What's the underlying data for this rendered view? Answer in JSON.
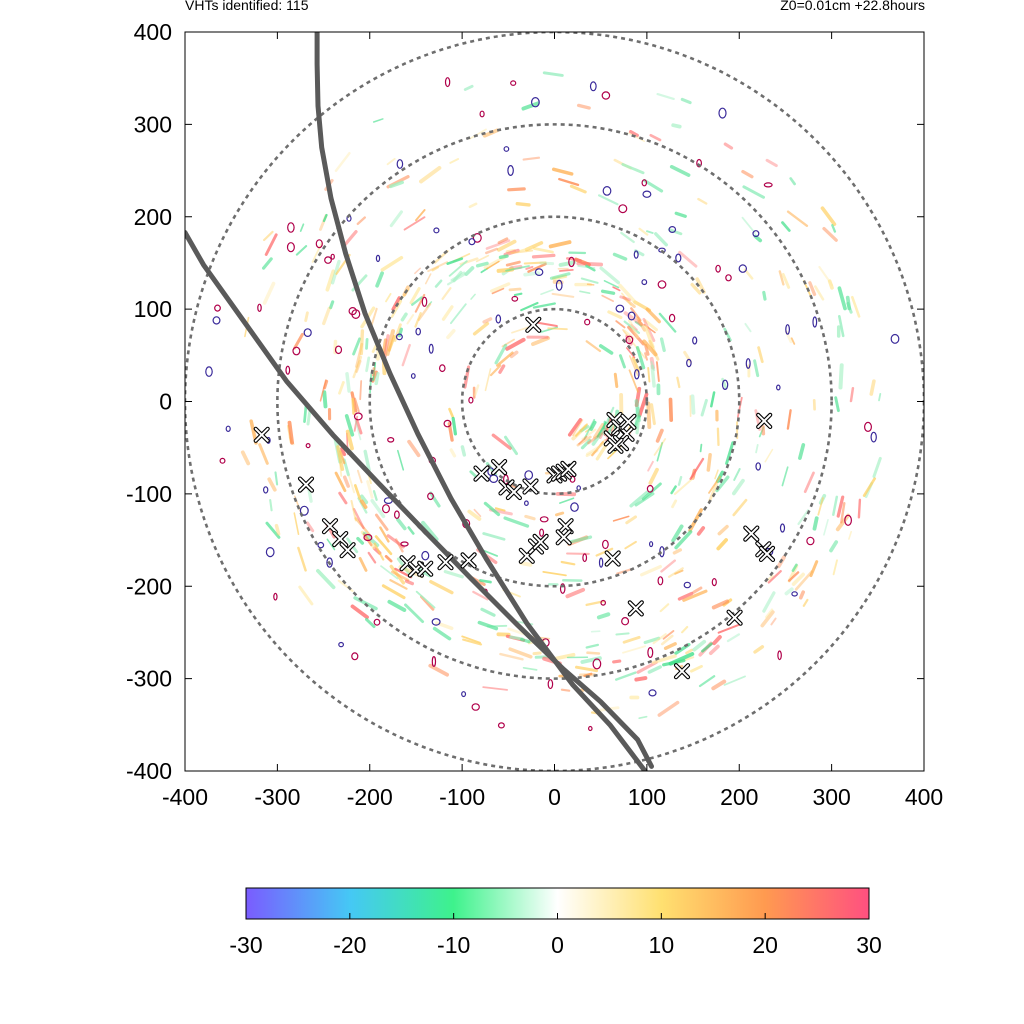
{
  "header": {
    "left_text": "VHTs identified: 115",
    "right_text": "Z0=0.01cm  +22.8hours"
  },
  "chart_data": {
    "type": "scatter",
    "title": "",
    "xlabel": "",
    "ylabel": "",
    "xlim": [
      -400,
      400
    ],
    "ylim": [
      -400,
      400
    ],
    "x_ticks": [
      "-400",
      "-300",
      "-200",
      "-100",
      "0",
      "100",
      "200",
      "300",
      "400"
    ],
    "y_ticks": [
      "400",
      "300",
      "200",
      "100",
      "0",
      "-100",
      "-200",
      "-300",
      "-400"
    ],
    "range_rings": [
      100,
      200,
      300,
      400
    ],
    "vht_markers": [
      {
        "x": -23,
        "y": 83
      },
      {
        "x": -317,
        "y": -36
      },
      {
        "x": -269,
        "y": -90
      },
      {
        "x": -243,
        "y": -135
      },
      {
        "x": -232,
        "y": -149
      },
      {
        "x": -224,
        "y": -161
      },
      {
        "x": -159,
        "y": -175
      },
      {
        "x": -150,
        "y": -182
      },
      {
        "x": -140,
        "y": -181
      },
      {
        "x": -118,
        "y": -174
      },
      {
        "x": -93,
        "y": -172
      },
      {
        "x": -79,
        "y": -78
      },
      {
        "x": -60,
        "y": -71
      },
      {
        "x": -52,
        "y": -93
      },
      {
        "x": -44,
        "y": -98
      },
      {
        "x": -26,
        "y": -92
      },
      {
        "x": -30,
        "y": -167
      },
      {
        "x": -20,
        "y": -157
      },
      {
        "x": -15,
        "y": -152
      },
      {
        "x": 0,
        "y": -80
      },
      {
        "x": 5,
        "y": -78
      },
      {
        "x": 10,
        "y": -76
      },
      {
        "x": 15,
        "y": -73
      },
      {
        "x": 12,
        "y": -135
      },
      {
        "x": 10,
        "y": -147
      },
      {
        "x": 65,
        "y": -20
      },
      {
        "x": 70,
        "y": -28
      },
      {
        "x": 78,
        "y": -35
      },
      {
        "x": 62,
        "y": -40
      },
      {
        "x": 72,
        "y": -45
      },
      {
        "x": 80,
        "y": -22
      },
      {
        "x": 66,
        "y": -48
      },
      {
        "x": 63,
        "y": -170
      },
      {
        "x": 88,
        "y": -224
      },
      {
        "x": 138,
        "y": -292
      },
      {
        "x": 195,
        "y": -234
      },
      {
        "x": 213,
        "y": -143
      },
      {
        "x": 226,
        "y": -160
      },
      {
        "x": 230,
        "y": -165
      },
      {
        "x": 227,
        "y": -21
      }
    ],
    "flight_tracks": [
      [
        [
          -400,
          183
        ],
        [
          -380,
          148
        ],
        [
          -340,
          92
        ],
        [
          -290,
          22
        ],
        [
          -240,
          -36
        ],
        [
          -190,
          -89
        ],
        [
          -140,
          -141
        ],
        [
          -90,
          -192
        ],
        [
          -40,
          -242
        ],
        [
          10,
          -290
        ],
        [
          50,
          -325
        ],
        [
          90,
          -366
        ],
        [
          105,
          -395
        ]
      ],
      [
        [
          -257,
          400
        ],
        [
          -257,
          365
        ],
        [
          -256,
          320
        ],
        [
          -252,
          275
        ],
        [
          -242,
          220
        ],
        [
          -226,
          160
        ],
        [
          -205,
          95
        ],
        [
          -178,
          30
        ],
        [
          -148,
          -35
        ],
        [
          -112,
          -105
        ],
        [
          -74,
          -170
        ],
        [
          -30,
          -240
        ],
        [
          20,
          -307
        ],
        [
          60,
          -350
        ],
        [
          98,
          -400
        ]
      ]
    ],
    "colorbar": {
      "min": -30,
      "max": 30,
      "ticks": [
        "-30",
        "-20",
        "-10",
        "0",
        "10",
        "20",
        "30"
      ],
      "stops": [
        "#7a5cff",
        "#45c8f5",
        "#3ef28c",
        "#ffffff",
        "#ffe070",
        "#ff9a50",
        "#ff5080"
      ]
    }
  }
}
